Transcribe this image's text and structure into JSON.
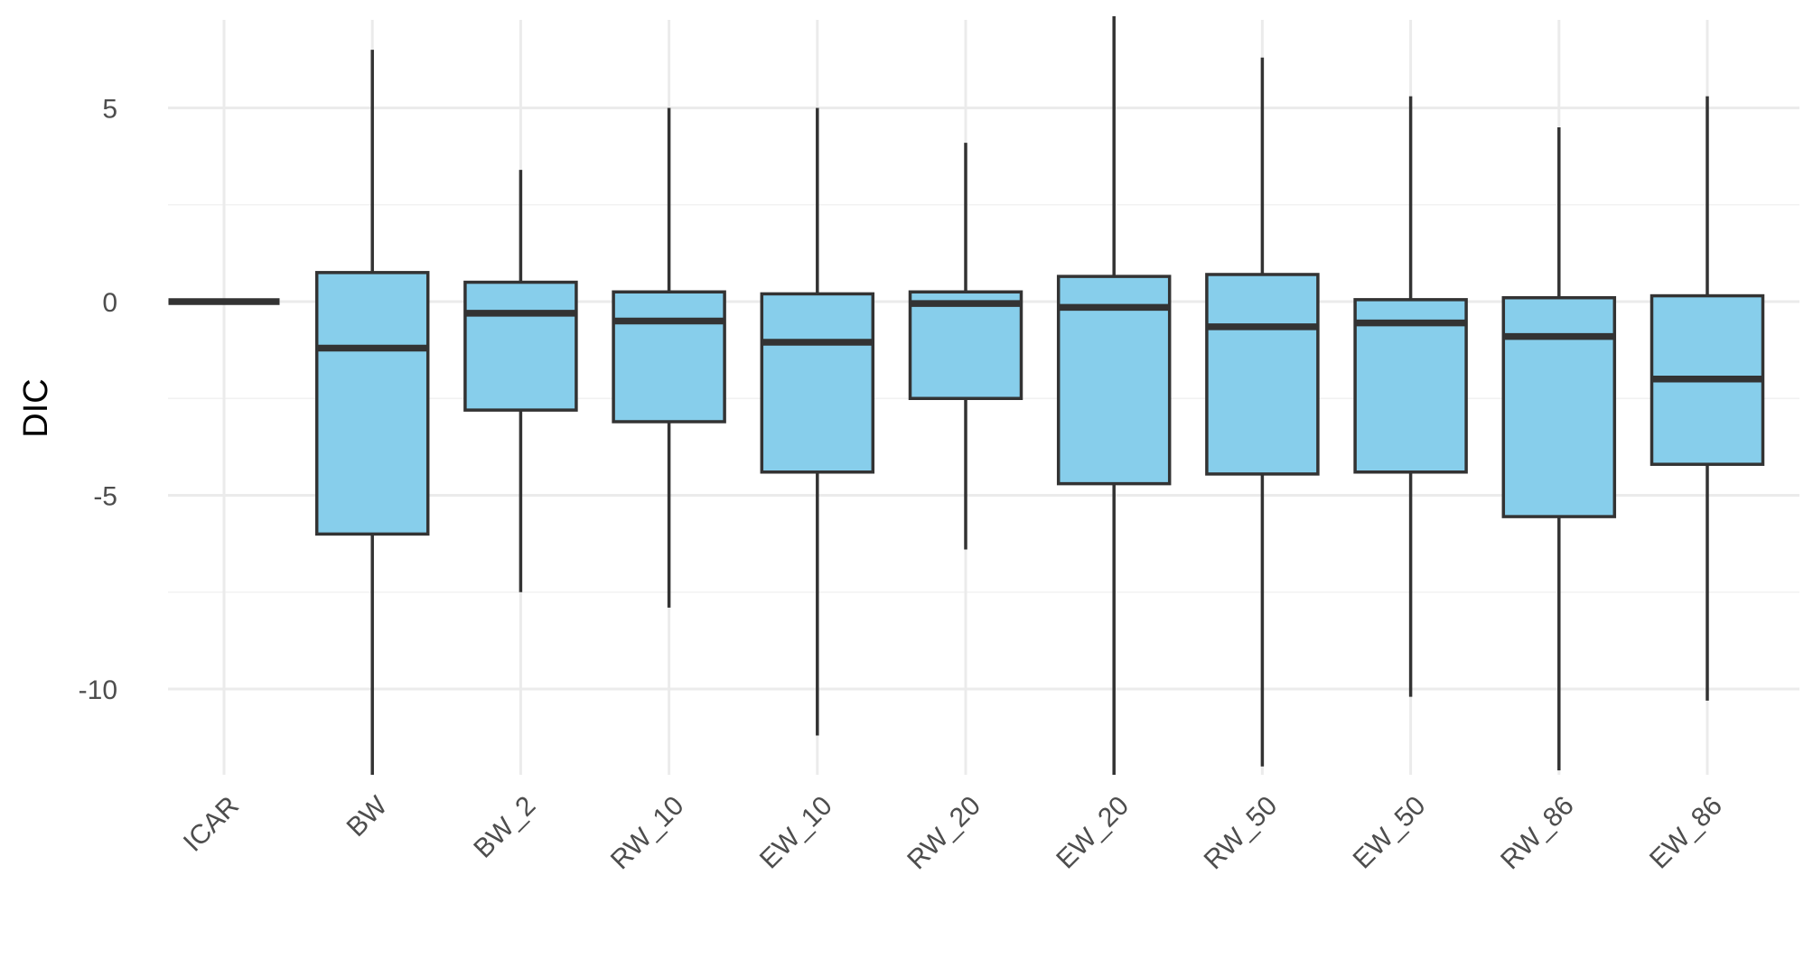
{
  "chart_data": {
    "type": "boxplot",
    "title": "",
    "xlabel": "",
    "ylabel": "DIC",
    "ylim": [
      -12.3,
      7.4
    ],
    "yticks": [
      5,
      0,
      -5,
      -10
    ],
    "ytick_labels": [
      "5",
      "0",
      "-5",
      "-10"
    ],
    "grid": true,
    "box_fill": "#87CEEB",
    "box_stroke": "#333333",
    "grid_major_color": "#EBEBEB",
    "grid_minor_color": "#F2F2F2",
    "categories": [
      "ICAR",
      "BW",
      "BW_2",
      "RW_10",
      "EW_10",
      "RW_20",
      "EW_20",
      "RW_50",
      "EW_50",
      "RW_86",
      "EW_86"
    ],
    "boxes": [
      {
        "category": "ICAR",
        "whisker_low": 0.0,
        "q1": 0.0,
        "median": 0.0,
        "q3": 0.0,
        "whisker_high": 0.0
      },
      {
        "category": "BW",
        "whisker_low": -12.3,
        "q1": -6.0,
        "median": -1.2,
        "q3": 0.75,
        "whisker_high": 6.5
      },
      {
        "category": "BW_2",
        "whisker_low": -7.5,
        "q1": -2.8,
        "median": -0.3,
        "q3": 0.5,
        "whisker_high": 3.4
      },
      {
        "category": "RW_10",
        "whisker_low": -7.9,
        "q1": -3.1,
        "median": -0.5,
        "q3": 0.25,
        "whisker_high": 5.0
      },
      {
        "category": "EW_10",
        "whisker_low": -11.2,
        "q1": -4.4,
        "median": -1.05,
        "q3": 0.2,
        "whisker_high": 5.0
      },
      {
        "category": "RW_20",
        "whisker_low": -6.4,
        "q1": -2.5,
        "median": -0.05,
        "q3": 0.25,
        "whisker_high": 4.1
      },
      {
        "category": "EW_20",
        "whisker_low": -12.3,
        "q1": -4.7,
        "median": -0.15,
        "q3": 0.65,
        "whisker_high": 7.4
      },
      {
        "category": "RW_50",
        "whisker_low": -12.0,
        "q1": -4.45,
        "median": -0.65,
        "q3": 0.7,
        "whisker_high": 6.3
      },
      {
        "category": "EW_50",
        "whisker_low": -10.2,
        "q1": -4.4,
        "median": -0.55,
        "q3": 0.05,
        "whisker_high": 5.3
      },
      {
        "category": "RW_86",
        "whisker_low": -12.1,
        "q1": -5.55,
        "median": -0.9,
        "q3": 0.1,
        "whisker_high": 4.5
      },
      {
        "category": "EW_86",
        "whisker_low": -10.3,
        "q1": -4.2,
        "median": -2.0,
        "q3": 0.15,
        "whisker_high": 5.3
      }
    ]
  }
}
